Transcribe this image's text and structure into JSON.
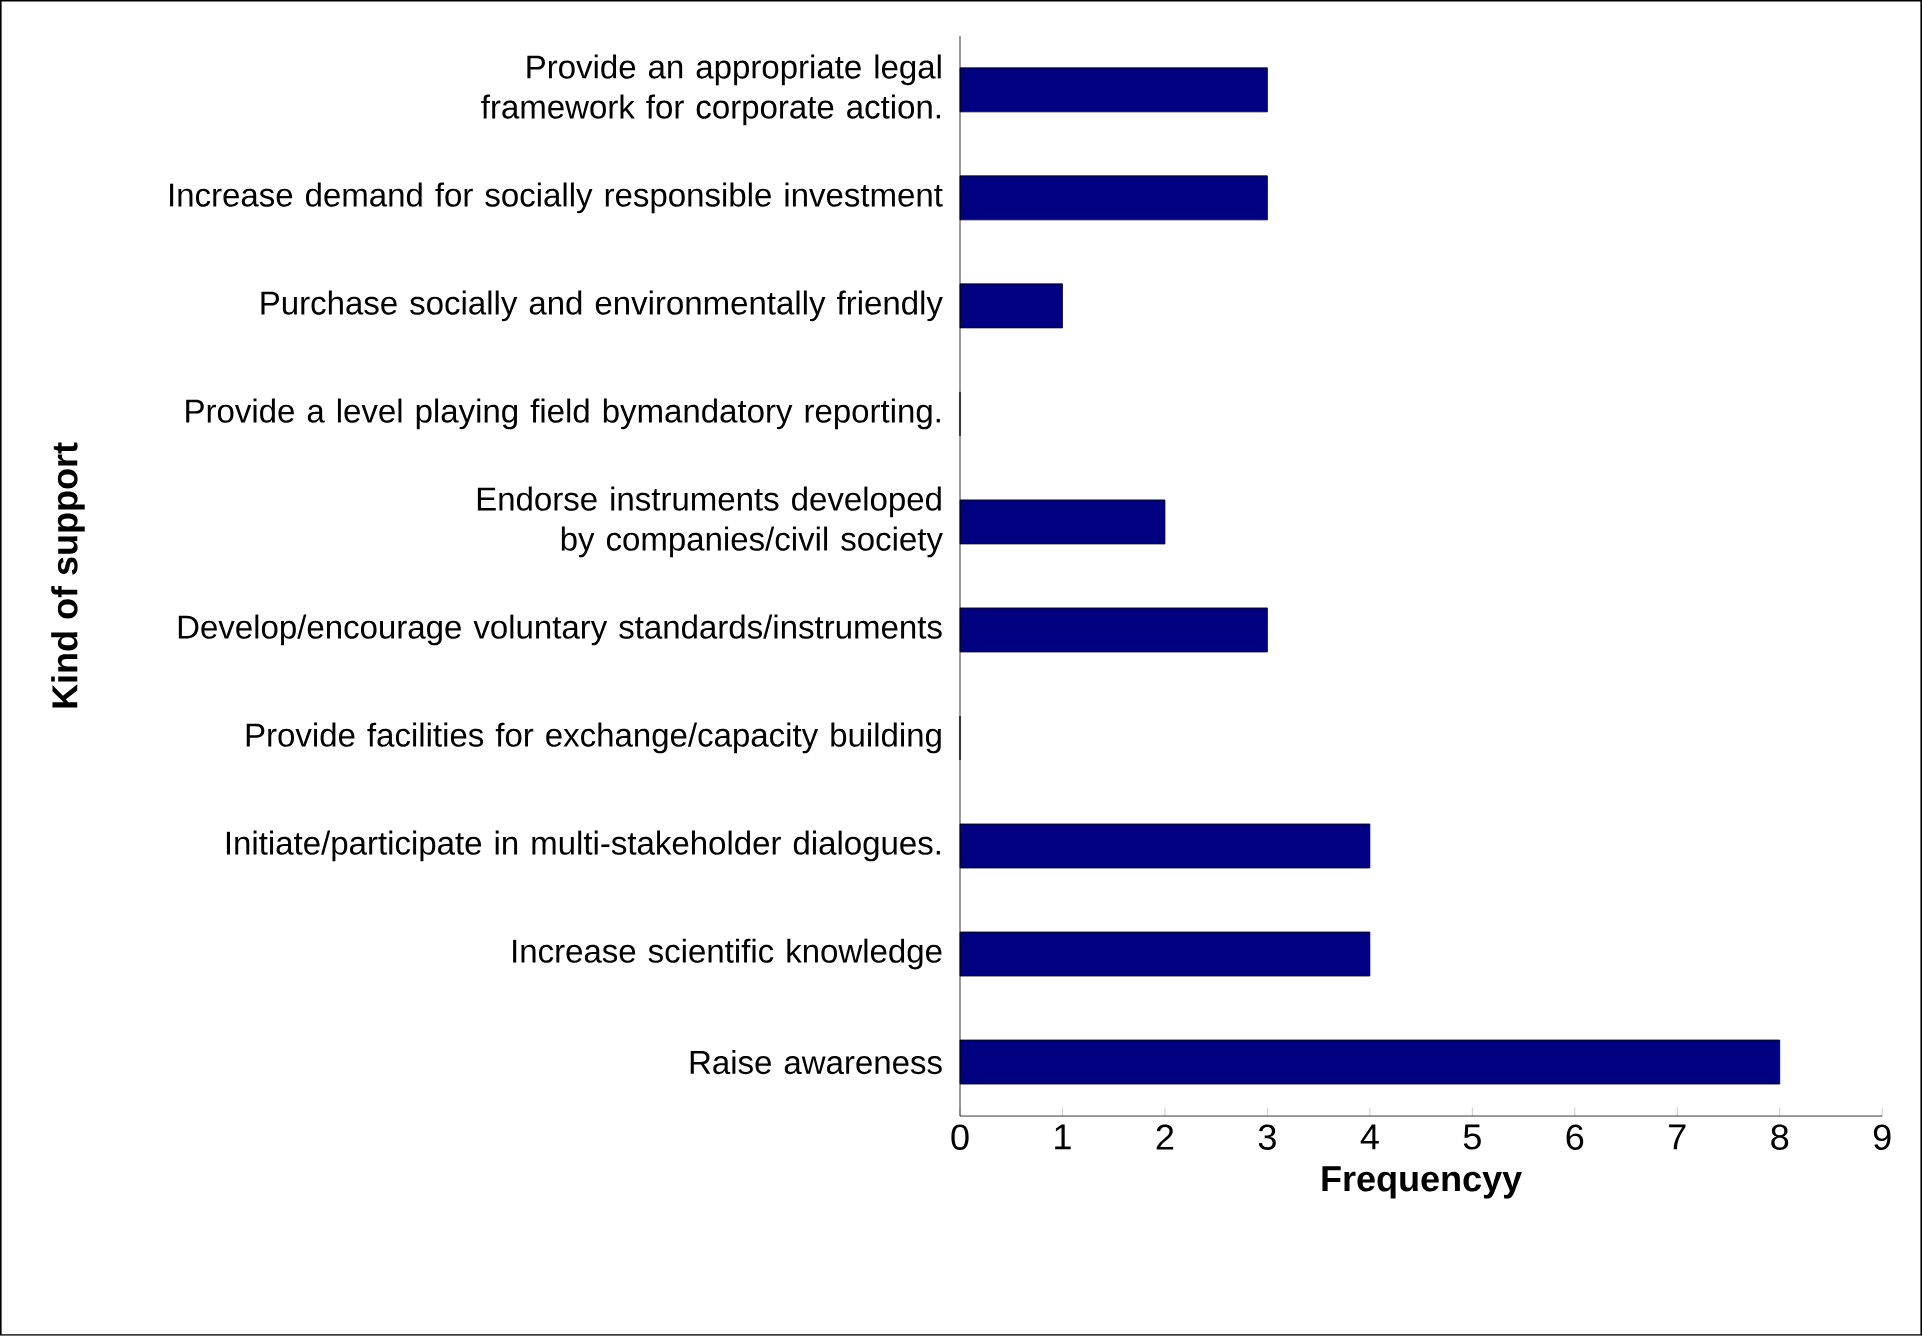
{
  "chart_data": {
    "type": "bar",
    "orientation": "horizontal",
    "xlabel": "Frequencyy",
    "ylabel": "Kind of support",
    "categories": [
      "Provide an appropriate legal framework for corporate action.",
      "Increase demand for socially responsible investment",
      "Purchase socially and environmentally friendly",
      "Provide a level playing field bymandatory reporting.",
      "Endorse instruments developed by companies/civil society",
      "Develop/encourage voluntary standards/instruments",
      "Provide facilities for exchange/capacity building",
      "Initiate/participate in multi-stakeholder dialogues.",
      "Increase scientific knowledge",
      "Raise awareness"
    ],
    "values": [
      3,
      3,
      1,
      0,
      2,
      3,
      0,
      4,
      4,
      8
    ],
    "color": "#000080",
    "xlim": [
      0,
      9
    ],
    "xticks": [
      0,
      1,
      2,
      3,
      4,
      5,
      6,
      7,
      8,
      9
    ],
    "grid": false
  }
}
